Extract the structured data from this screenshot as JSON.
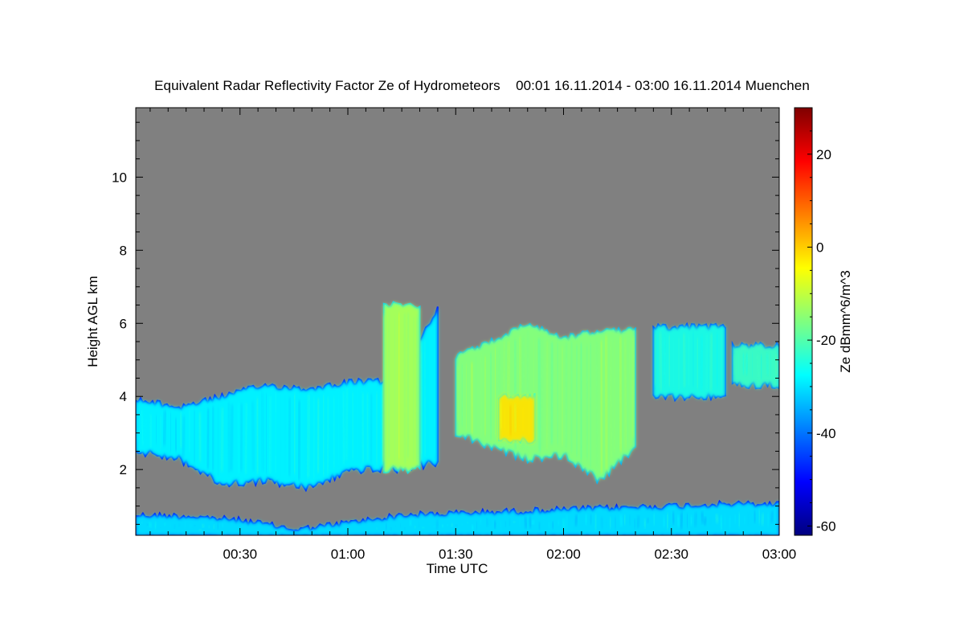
{
  "chart_data": {
    "type": "heatmap",
    "title": "Equivalent Radar Reflectivity Factor Ze of Hydrometeors",
    "period": "00:01 16.11.2014 - 03:00 16.11.2014",
    "location": "Muenchen",
    "xlabel": "Time UTC",
    "ylabel": "Height AGL km",
    "xlim": [
      "00:01",
      "03:00"
    ],
    "x_ticks": [
      "00:30",
      "01:00",
      "01:30",
      "02:00",
      "02:30",
      "03:00"
    ],
    "ylim": [
      0.2,
      11.9
    ],
    "y_ticks": [
      2,
      4,
      6,
      8,
      10
    ],
    "colorbar": {
      "label": "Ze dBmm^6/m^3",
      "range": [
        -62,
        30
      ],
      "ticks": [
        -60,
        -40,
        -20,
        0,
        20
      ],
      "colormap": "jet"
    },
    "background_color": "#808080",
    "echoes": [
      {
        "start": "00:01",
        "end": "03:00",
        "bottom_km": 0.2,
        "top_km": [
          0.75,
          0.72,
          0.6,
          0.35,
          0.55,
          0.75,
          0.8,
          0.85,
          0.9,
          0.95,
          1.0,
          1.05,
          1.05
        ],
        "ze_dbz": -30
      },
      {
        "start": "00:01",
        "end": "01:25",
        "bottom_km": [
          2.5,
          2.3,
          1.6,
          1.7,
          1.5,
          2.0,
          2.0,
          2.2
        ],
        "top_km": [
          3.9,
          3.7,
          4.0,
          4.3,
          4.2,
          4.4,
          4.4,
          6.4
        ],
        "ze_dbz": -28
      },
      {
        "start": "01:10",
        "end": "01:20",
        "bottom_km": 2.0,
        "top_km": 6.5,
        "ze_dbz": -12
      },
      {
        "start": "01:30",
        "end": "02:20",
        "bottom_km": [
          3.0,
          2.6,
          2.3,
          2.4,
          1.7,
          2.6
        ],
        "top_km": [
          5.1,
          5.5,
          6.0,
          5.6,
          5.8,
          5.8
        ],
        "ze_dbz": -15
      },
      {
        "start": "01:42",
        "end": "01:52",
        "bottom_km": 2.8,
        "top_km": 4.0,
        "ze_dbz": -2
      },
      {
        "start": "02:25",
        "end": "02:45",
        "bottom_km": 4.0,
        "top_km": 5.9,
        "ze_dbz": -25
      },
      {
        "start": "02:47",
        "end": "03:00",
        "bottom_km": 4.3,
        "top_km": 5.4,
        "ze_dbz": -22
      }
    ]
  }
}
